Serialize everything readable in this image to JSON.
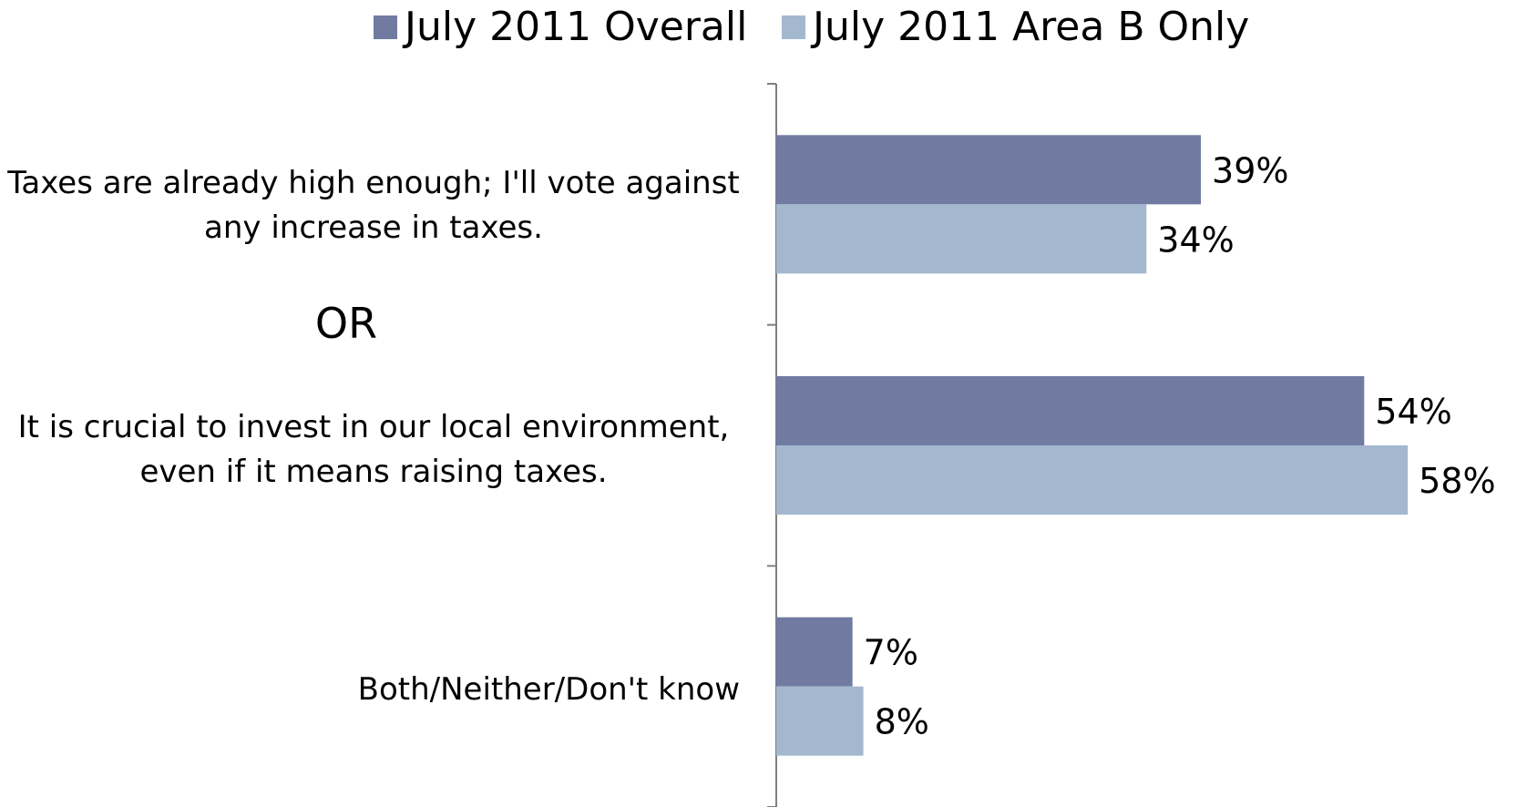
{
  "legend_entries": [
    {
      "name": "July 2011 Overall",
      "color": "#717aa1"
    },
    {
      "name": "July 2011 Area B Only",
      "color": "#a3b8cf"
    }
  ],
  "separator_text": "OR",
  "chart_data": {
    "type": "bar",
    "orientation": "horizontal",
    "categories": [
      "Taxes are already high enough; I'll vote against any increase in taxes.",
      "It is crucial to invest in our local environment, even if it means raising taxes.",
      "Both/Neither/Don't know"
    ],
    "category_lines": [
      [
        "Taxes are already high enough; I'll vote against",
        "any increase in taxes."
      ],
      [
        "It is crucial to invest in our local environment,",
        "even if it means raising taxes."
      ],
      [
        "Both/Neither/Don't know"
      ]
    ],
    "series": [
      {
        "name": "July 2011 Overall",
        "values": [
          39,
          54,
          7
        ],
        "labels": [
          "39%",
          "54%",
          "7%"
        ],
        "color": "#717aa1"
      },
      {
        "name": "July 2011 Area B Only",
        "values": [
          34,
          58,
          8
        ],
        "labels": [
          "34%",
          "58%",
          "8%"
        ],
        "color": "#a3b8cf"
      }
    ],
    "xlim": [
      0,
      65
    ],
    "grid": false,
    "legend_position": "top",
    "title": "",
    "xlabel": "",
    "ylabel": ""
  }
}
